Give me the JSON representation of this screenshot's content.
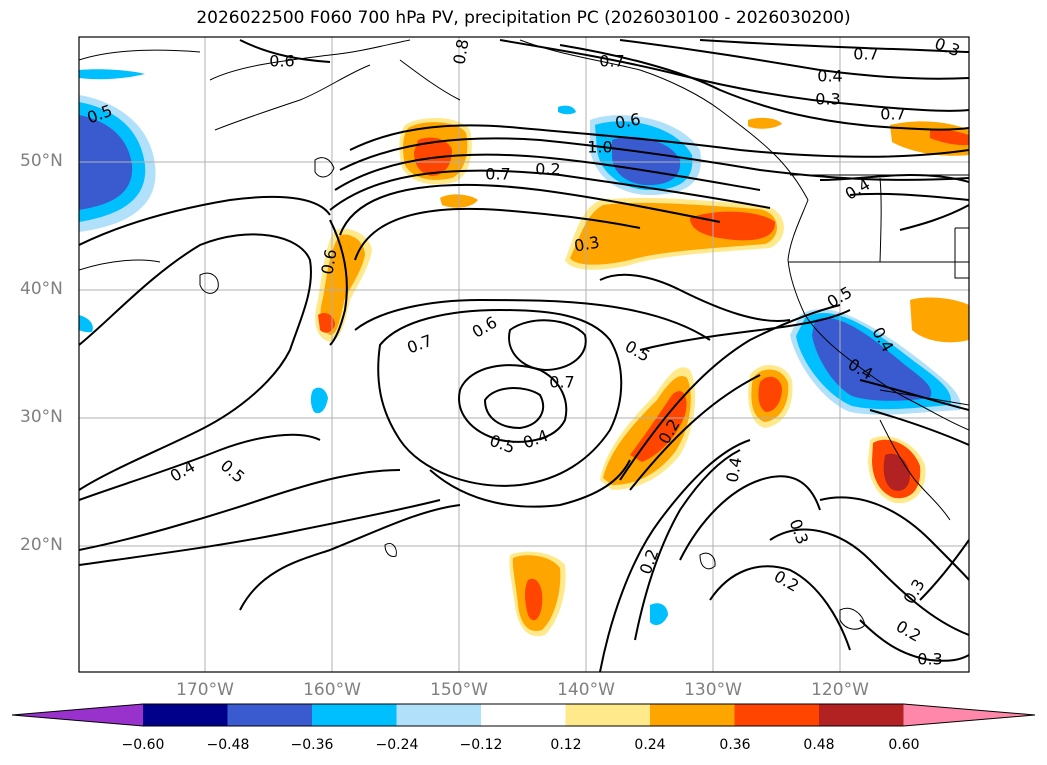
{
  "title": "2026022500 F060 700 hPa PV, precipitation PC (2026030100 - 2026030200)",
  "lat_labels": [
    "50°N",
    "40°N",
    "30°N",
    "20°N"
  ],
  "lon_labels": [
    "170°W",
    "160°W",
    "150°W",
    "140°W",
    "130°W",
    "120°W"
  ],
  "contour_labels": [
    "0.6",
    "0.8",
    "0.5",
    "0.7",
    "0.7",
    "0.6",
    "0.4",
    "0.3",
    "0.7",
    "1.0",
    "0.7",
    "0.2",
    "0.3",
    "0.4",
    "0.6",
    "0.5",
    "0.4",
    "0.7",
    "0.6",
    "0.5",
    "0.7",
    "0.5",
    "0.4",
    "0.2",
    "0.4",
    "0.5",
    "0.4",
    "0.3",
    "0.2",
    "0.2",
    "0.3",
    "0.2",
    "0.3",
    "0.4",
    "0.3"
  ],
  "colorbar": {
    "ticks": [
      "−0.60",
      "−0.48",
      "−0.36",
      "−0.24",
      "−0.12",
      "0.12",
      "0.24",
      "0.36",
      "0.48",
      "0.60"
    ],
    "colors": [
      "#9932cc",
      "#00008b",
      "#3a5bd0",
      "#00bfff",
      "#b0e0fa",
      "#ffffff",
      "#ffe98a",
      "#ffa500",
      "#ff4500",
      "#b22222",
      "#ff88aa"
    ]
  }
}
